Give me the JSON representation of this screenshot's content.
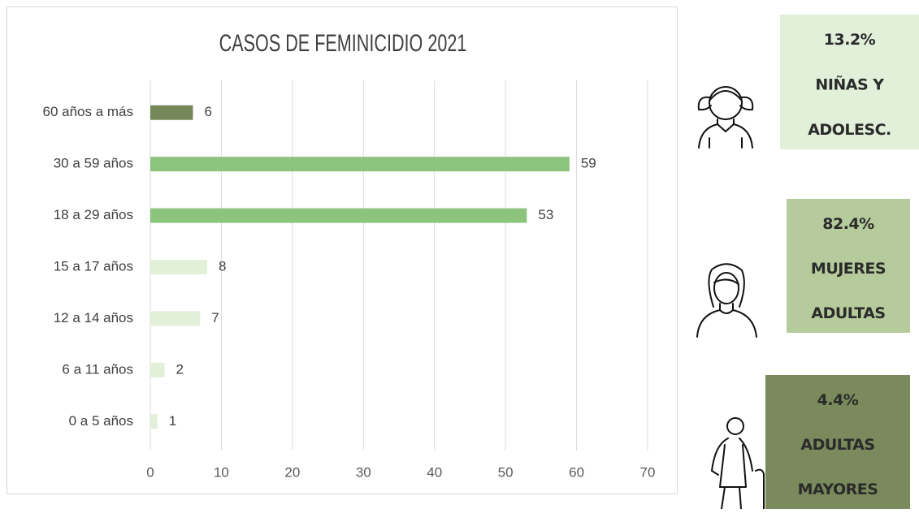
{
  "chart_data": {
    "type": "bar",
    "orientation": "horizontal",
    "title": "CASOS DE FEMINICIDIO 2021",
    "categories": [
      "60 años a más",
      "30 a 59 años",
      "18 a 29 años",
      "15 a 17 años",
      "12 a 14 años",
      "6 a 11 años",
      "0 a 5 años"
    ],
    "values": [
      6,
      59,
      53,
      8,
      7,
      2,
      1
    ],
    "colors": [
      "#76875a",
      "#8cc47e",
      "#8cc47e",
      "#e2efd9",
      "#e2efd9",
      "#e2efd9",
      "#e2efd9"
    ],
    "xlim": [
      0,
      70
    ],
    "xticks": [
      0,
      10,
      20,
      30,
      40,
      50,
      60,
      70
    ],
    "grid": true
  },
  "panels": [
    {
      "percent": "13.2%",
      "lines": [
        "NIÑAS Y",
        "ADOLESC."
      ]
    },
    {
      "percent": "82.4%",
      "lines": [
        "MUJERES",
        "ADULTAS"
      ]
    },
    {
      "percent": "4.4%",
      "lines": [
        "ADULTAS",
        "MAYORES"
      ]
    }
  ]
}
